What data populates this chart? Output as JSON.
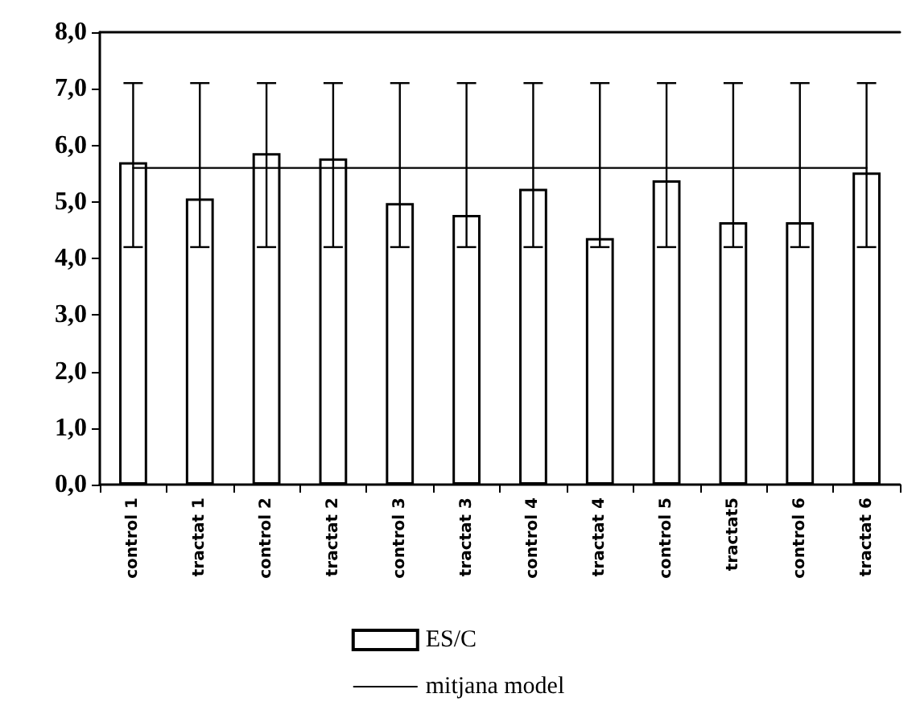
{
  "chart_data": {
    "type": "bar",
    "categories": [
      "control 1",
      "tractat 1",
      "control 2",
      "tractat 2",
      "control 3",
      "tractat 3",
      "control 4",
      "tractat 4",
      "control 5",
      "tractat5",
      "control 6",
      "tractat 6"
    ],
    "series": [
      {
        "name": "ES/C",
        "color": "#ffffff",
        "values": [
          5.7,
          5.06,
          5.86,
          5.77,
          4.98,
          4.77,
          5.23,
          4.36,
          5.38,
          4.64,
          4.64,
          5.52
        ],
        "errors": [
          [
            4.2,
            7.1
          ],
          [
            4.2,
            7.1
          ],
          [
            4.2,
            7.1
          ],
          [
            4.2,
            7.1
          ],
          [
            4.2,
            7.1
          ],
          [
            4.2,
            7.1
          ],
          [
            4.2,
            7.1
          ],
          [
            4.2,
            7.1
          ],
          [
            4.2,
            7.1
          ],
          [
            4.2,
            7.1
          ],
          [
            4.2,
            7.1
          ],
          [
            4.2,
            7.1
          ]
        ]
      },
      {
        "name": "mitjana model",
        "type": "line",
        "color": "#000000",
        "values": [
          5.6,
          5.6,
          5.6,
          5.6,
          5.6,
          5.6,
          5.6,
          5.6,
          5.6,
          5.6,
          5.6,
          5.6
        ]
      }
    ],
    "ylim": [
      0,
      8
    ],
    "yticks": [
      {
        "value": 0,
        "label": "0,0"
      },
      {
        "value": 1,
        "label": "1,0"
      },
      {
        "value": 2,
        "label": "2,0"
      },
      {
        "value": 3,
        "label": "3,0"
      },
      {
        "value": 4,
        "label": "4,0"
      },
      {
        "value": 5,
        "label": "5,0"
      },
      {
        "value": 6,
        "label": "6,0"
      },
      {
        "value": 7,
        "label": "7,0"
      },
      {
        "value": 8,
        "label": "8,0"
      }
    ],
    "grid": false,
    "legend": "bottom",
    "marker": "none"
  }
}
